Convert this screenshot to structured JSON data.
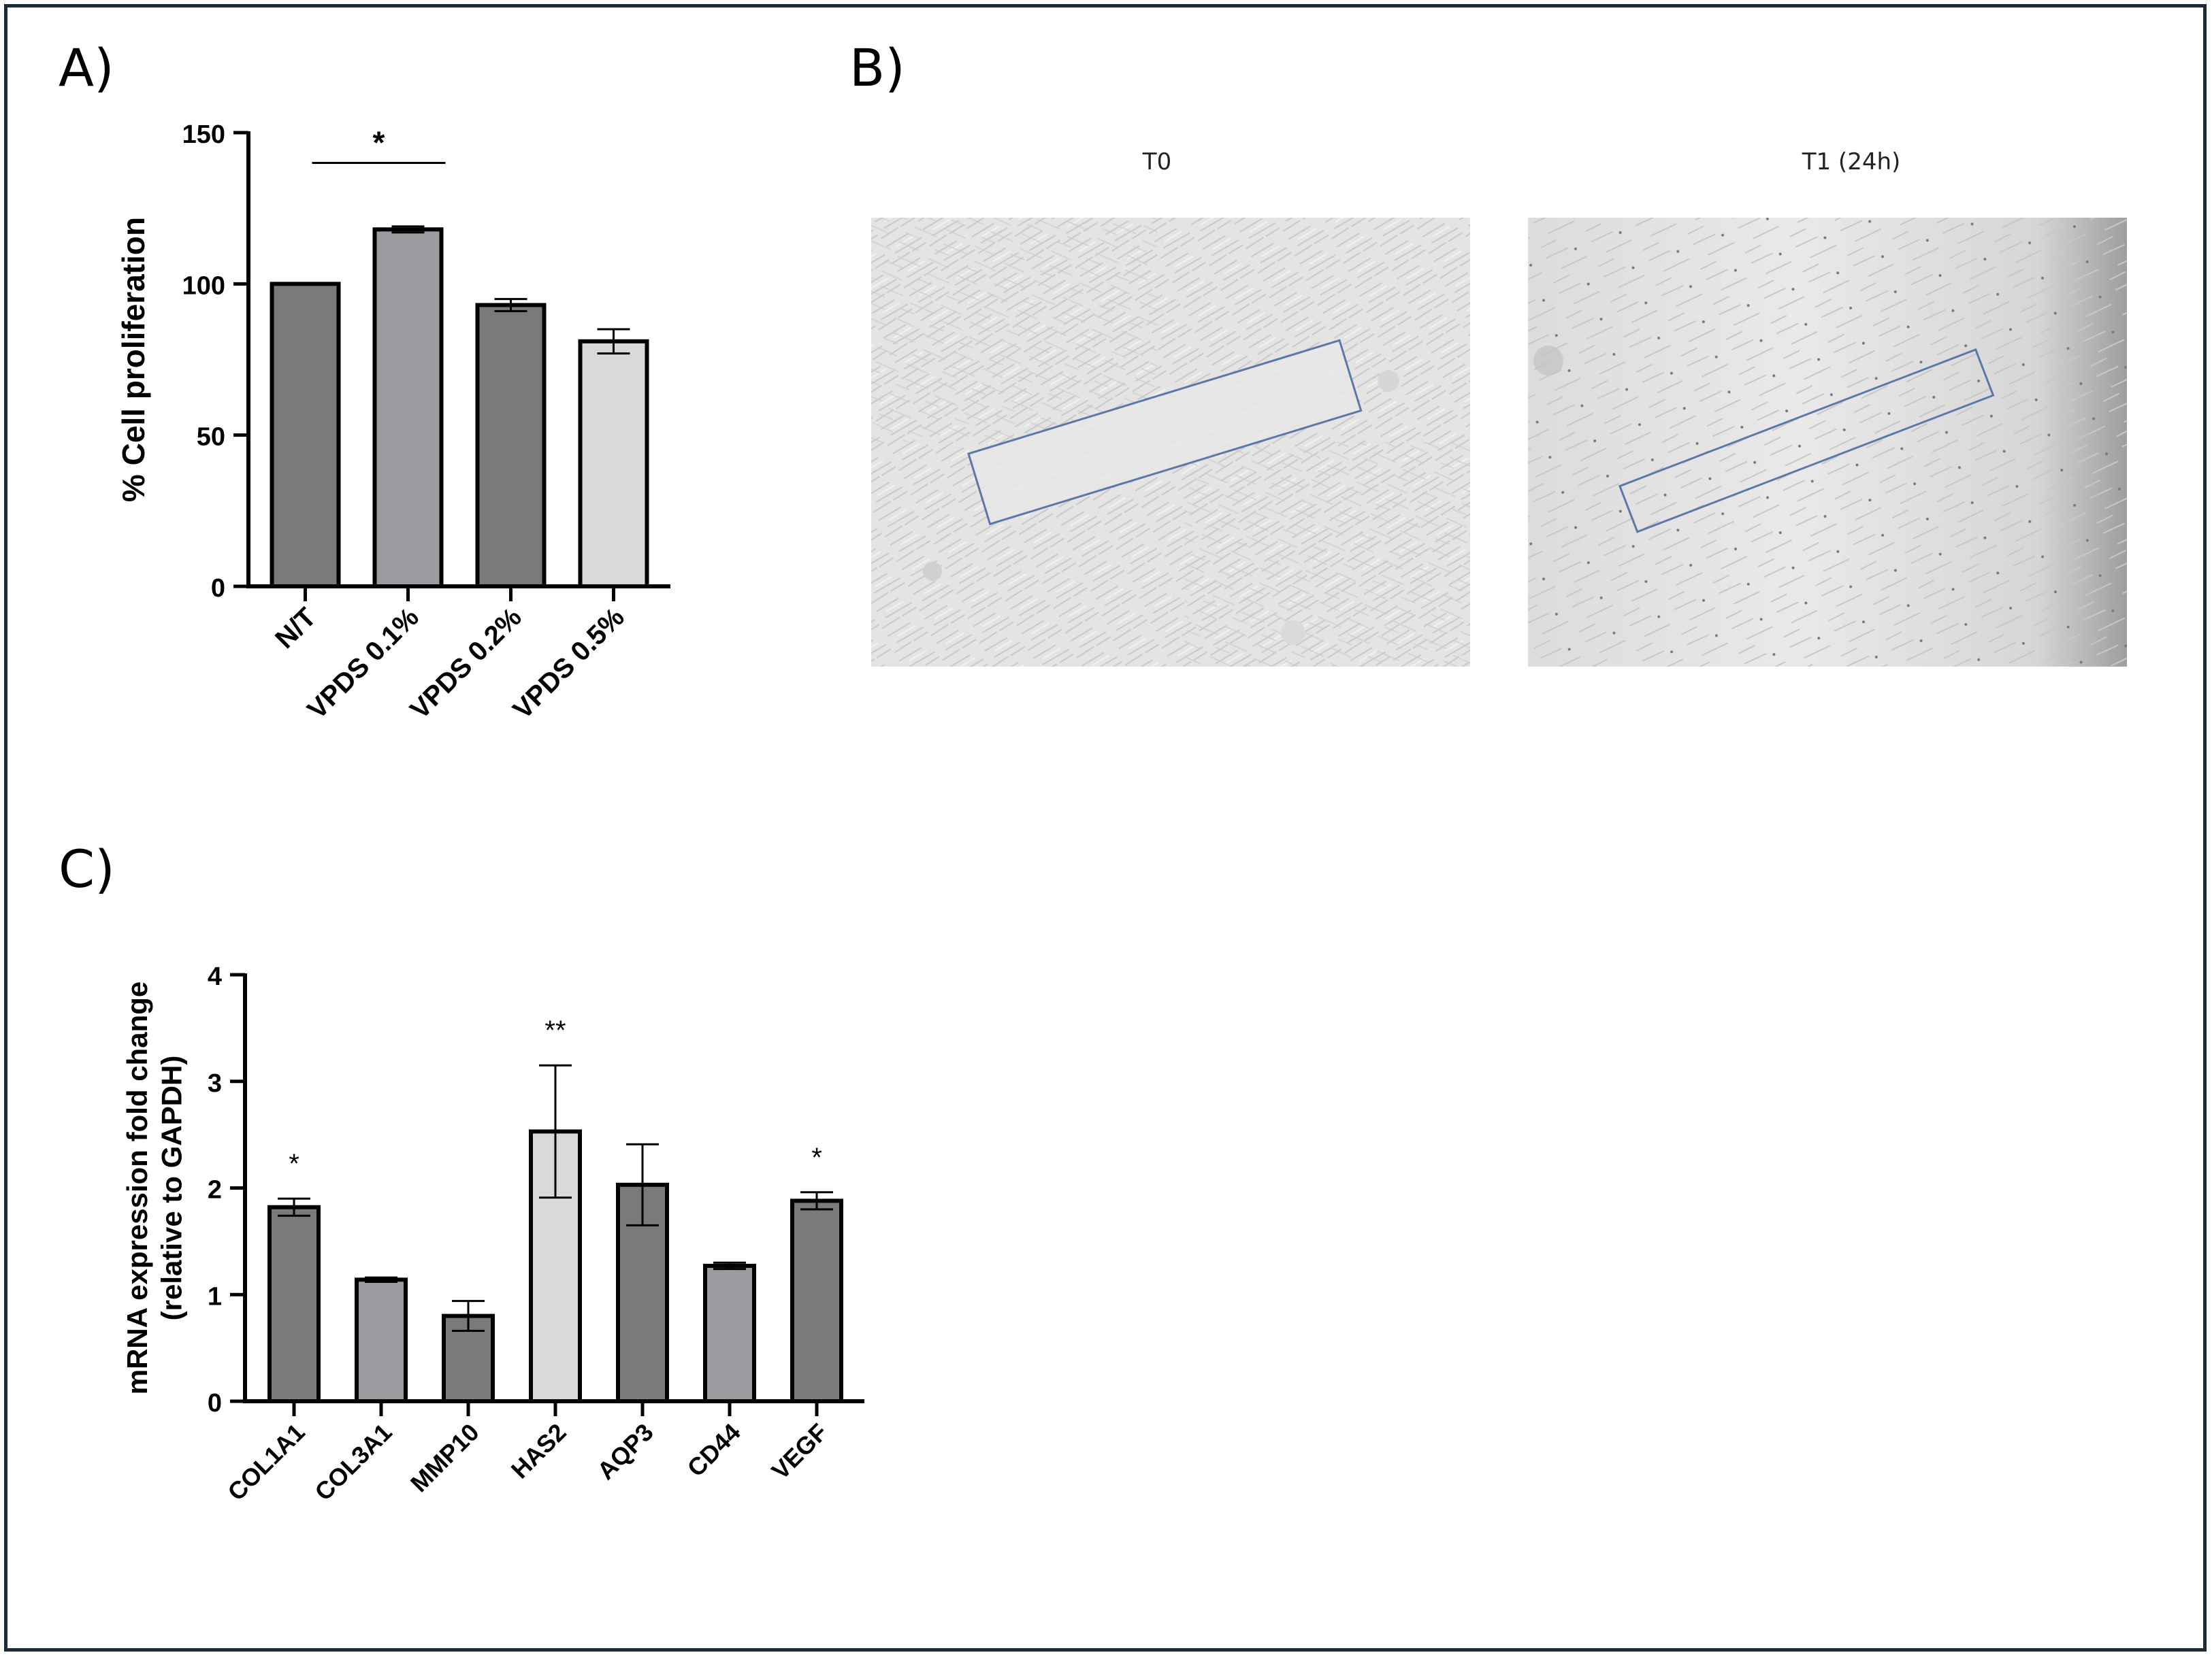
{
  "panels": {
    "a_label": "A)",
    "b_label": "B)",
    "c_label": "C)"
  },
  "chart_data": [
    {
      "id": "A",
      "type": "bar",
      "ylabel": "% Cell proliferation",
      "xlabel": "",
      "ylim": [
        0,
        150
      ],
      "yticks": [
        0,
        50,
        100,
        150
      ],
      "categories": [
        "N/T",
        "VPDS 0.1%",
        "VPDS 0.2%",
        "VPDS 0.5%"
      ],
      "values": [
        100,
        118,
        93,
        81
      ],
      "errors": [
        0,
        1,
        2,
        4
      ],
      "bar_colors": [
        "#7a7a7a",
        "#9c9ca0",
        "#7a7a7a",
        "#d9d9d9"
      ],
      "significance": [
        {
          "from": 0,
          "to": 1,
          "label": "*"
        }
      ]
    },
    {
      "id": "C",
      "type": "bar",
      "ylabel": "mRNA expression fold change",
      "ylabel2": "(relative to GAPDH)",
      "xlabel": "",
      "ylim": [
        0,
        4
      ],
      "yticks": [
        0,
        1,
        2,
        3,
        4
      ],
      "categories": [
        "COL1A1",
        "COL3A1",
        "MMP10",
        "HAS2",
        "AQP3",
        "CD44",
        "VEGF"
      ],
      "values": [
        1.82,
        1.14,
        0.8,
        2.53,
        2.03,
        1.27,
        1.88
      ],
      "errors": [
        0.08,
        0.02,
        0.14,
        0.62,
        0.38,
        0.03,
        0.08
      ],
      "bar_colors": [
        "#7a7a7a",
        "#9c9ca0",
        "#7a7a7a",
        "#d9d9d9",
        "#7a7a7a",
        "#9c9ca0",
        "#7a7a7a"
      ],
      "annotations": [
        "*",
        "",
        "",
        "**",
        "",
        "",
        "*"
      ]
    }
  ],
  "micrographs": {
    "t0_title": "T0",
    "t1_title": "T1 (24h)"
  }
}
